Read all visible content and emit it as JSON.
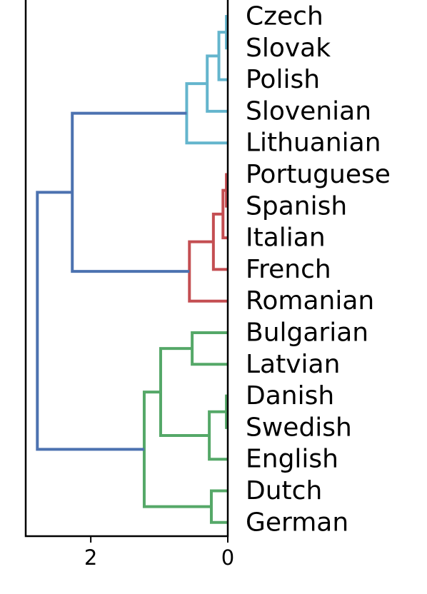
{
  "chart_data": {
    "type": "dendrogram",
    "orientation": "left",
    "leaves": [
      "Czech",
      "Slovak",
      "Polish",
      "Slovenian",
      "Lithuanian",
      "Portuguese",
      "Spanish",
      "Italian",
      "French",
      "Romanian",
      "Bulgarian",
      "Latvian",
      "Danish",
      "Swedish",
      "English",
      "Dutch",
      "German"
    ],
    "x_ticks": [
      {
        "value": 2,
        "label": "2"
      },
      {
        "value": 0,
        "label": "0"
      }
    ],
    "xlim": [
      2.95,
      0
    ],
    "colors": {
      "root": "#4c72b0",
      "slavic_baltic": "#64b5cd",
      "romance": "#c44e52",
      "germanic_other": "#55a868",
      "axis": "#000000"
    },
    "merges": [
      {
        "id": 0,
        "left": "Czech",
        "right": "Slovak",
        "height": 0.02,
        "color": "slavic_baltic"
      },
      {
        "id": 1,
        "left": "#0",
        "right": "Polish",
        "height": 0.13,
        "color": "slavic_baltic"
      },
      {
        "id": 2,
        "left": "#1",
        "right": "Slovenian",
        "height": 0.3,
        "color": "slavic_baltic"
      },
      {
        "id": 3,
        "left": "#2",
        "right": "Lithuanian",
        "height": 0.6,
        "color": "slavic_baltic"
      },
      {
        "id": 4,
        "left": "Portuguese",
        "right": "Spanish",
        "height": 0.02,
        "color": "romance"
      },
      {
        "id": 5,
        "left": "#4",
        "right": "Italian",
        "height": 0.07,
        "color": "romance"
      },
      {
        "id": 6,
        "left": "#5",
        "right": "French",
        "height": 0.21,
        "color": "romance"
      },
      {
        "id": 7,
        "left": "#6",
        "right": "Romanian",
        "height": 0.56,
        "color": "romance"
      },
      {
        "id": 8,
        "left": "#3",
        "right": "#7",
        "height": 2.27,
        "color": "root"
      },
      {
        "id": 9,
        "left": "Bulgarian",
        "right": "Latvian",
        "height": 0.52,
        "color": "germanic_other"
      },
      {
        "id": 10,
        "left": "Danish",
        "right": "Swedish",
        "height": 0.02,
        "color": "germanic_other"
      },
      {
        "id": 11,
        "left": "#10",
        "right": "English",
        "height": 0.27,
        "color": "germanic_other"
      },
      {
        "id": 12,
        "left": "#9",
        "right": "#11",
        "height": 0.98,
        "color": "germanic_other"
      },
      {
        "id": 13,
        "left": "Dutch",
        "right": "German",
        "height": 0.24,
        "color": "germanic_other"
      },
      {
        "id": 14,
        "left": "#12",
        "right": "#13",
        "height": 1.22,
        "color": "germanic_other"
      },
      {
        "id": 15,
        "left": "#8",
        "right": "#14",
        "height": 2.78,
        "color": "root"
      }
    ],
    "title": "",
    "xlabel": "",
    "ylabel": "",
    "grid": false,
    "legend": "none"
  }
}
